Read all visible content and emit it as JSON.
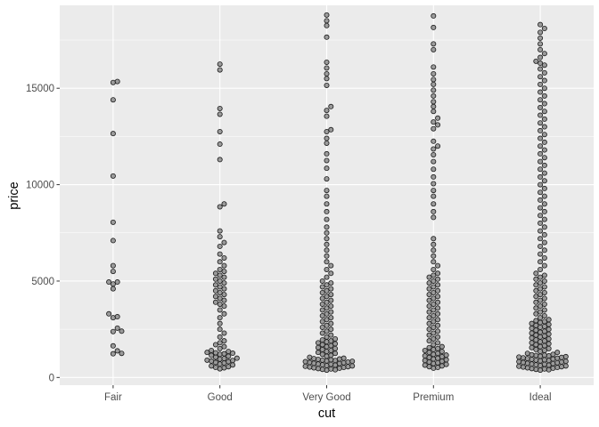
{
  "chart_data": {
    "type": "scatter",
    "subtype": "beeswarm",
    "title": "",
    "xlabel": "cut",
    "ylabel": "price",
    "categories": [
      "Fair",
      "Good",
      "Very Good",
      "Premium",
      "Ideal"
    ],
    "ylim": [
      -400,
      19300
    ],
    "yticks": [
      0,
      5000,
      10000,
      15000
    ],
    "ytick_labels": [
      "0",
      "5000",
      "10000",
      "15000"
    ],
    "grid": true,
    "legend": "none",
    "colors": {
      "panel": "#ebebeb",
      "grid_major": "#ffffff",
      "point_fill": "#7f7f7f",
      "point_stroke": "#1a1a1a",
      "tick_text": "#4d4d4d",
      "axis_title": "#000000"
    },
    "series": [
      {
        "category": "Fair",
        "values": [
          1230,
          1250,
          1380,
          1640,
          2380,
          2400,
          2560,
          3100,
          3150,
          3300,
          4600,
          4850,
          4950,
          4950,
          5500,
          5800,
          7100,
          8050,
          10450,
          12650,
          14400,
          15300,
          15350
        ]
      },
      {
        "category": "Good",
        "values": [
          450,
          500,
          520,
          560,
          600,
          650,
          700,
          750,
          780,
          820,
          850,
          880,
          900,
          950,
          980,
          1000,
          1050,
          1100,
          1150,
          1200,
          1230,
          1260,
          1280,
          1300,
          1350,
          1400,
          1500,
          1600,
          1700,
          1800,
          1900,
          2100,
          2300,
          2500,
          2800,
          3100,
          3300,
          3500,
          3700,
          3800,
          3900,
          4000,
          4100,
          4200,
          4300,
          4400,
          4500,
          4600,
          4700,
          4800,
          4900,
          5000,
          5100,
          5200,
          5300,
          5400,
          5500,
          5600,
          5800,
          6000,
          6200,
          6400,
          6800,
          7000,
          7300,
          7600,
          8850,
          9000,
          11300,
          12100,
          12750,
          13650,
          13950,
          15950,
          16250
        ]
      },
      {
        "category": "Very Good",
        "values": [
          380,
          400,
          420,
          440,
          460,
          480,
          500,
          520,
          540,
          560,
          580,
          600,
          620,
          640,
          660,
          680,
          700,
          720,
          740,
          760,
          780,
          800,
          820,
          840,
          860,
          880,
          900,
          920,
          940,
          960,
          980,
          1000,
          1050,
          1100,
          1150,
          1200,
          1250,
          1300,
          1350,
          1400,
          1450,
          1500,
          1550,
          1600,
          1650,
          1700,
          1750,
          1800,
          1850,
          1900,
          1950,
          2000,
          2100,
          2200,
          2300,
          2400,
          2500,
          2600,
          2700,
          2800,
          2900,
          3000,
          3100,
          3200,
          3300,
          3400,
          3500,
          3600,
          3700,
          3800,
          3900,
          4000,
          4100,
          4200,
          4300,
          4400,
          4500,
          4600,
          4700,
          4800,
          4900,
          5000,
          5200,
          5400,
          5600,
          5800,
          6000,
          6300,
          6600,
          6900,
          7200,
          7500,
          7800,
          8200,
          8600,
          9000,
          9400,
          9700,
          10300,
          10850,
          11250,
          11600,
          12150,
          12400,
          12750,
          12850,
          13550,
          13850,
          14050,
          15150,
          15500,
          15750,
          16050,
          16350,
          17650,
          18250,
          18500,
          18800
        ]
      },
      {
        "category": "Premium",
        "values": [
          480,
          520,
          560,
          600,
          640,
          680,
          720,
          760,
          800,
          840,
          880,
          920,
          960,
          1000,
          1040,
          1080,
          1120,
          1160,
          1200,
          1250,
          1300,
          1350,
          1400,
          1450,
          1500,
          1550,
          1600,
          1700,
          1800,
          1900,
          2000,
          2100,
          2200,
          2300,
          2400,
          2500,
          2600,
          2700,
          2800,
          2900,
          3000,
          3100,
          3200,
          3300,
          3400,
          3500,
          3600,
          3700,
          3800,
          3900,
          4000,
          4100,
          4200,
          4300,
          4400,
          4500,
          4600,
          4700,
          4800,
          4900,
          5000,
          5100,
          5200,
          5300,
          5400,
          5600,
          5800,
          6000,
          6300,
          6600,
          6900,
          7200,
          8300,
          8600,
          9000,
          9400,
          9700,
          10050,
          10400,
          10800,
          11200,
          11550,
          11850,
          12000,
          12250,
          12900,
          13100,
          13250,
          13450,
          13800,
          14050,
          14300,
          14600,
          14900,
          15200,
          15450,
          15750,
          16100,
          17000,
          17300,
          18150,
          18750
        ]
      },
      {
        "category": "Ideal",
        "values": [
          380,
          400,
          420,
          440,
          460,
          480,
          500,
          520,
          540,
          560,
          580,
          600,
          620,
          640,
          660,
          680,
          700,
          720,
          740,
          760,
          780,
          800,
          820,
          840,
          860,
          880,
          900,
          920,
          940,
          960,
          980,
          1000,
          1020,
          1040,
          1060,
          1080,
          1100,
          1120,
          1140,
          1160,
          1180,
          1200,
          1250,
          1300,
          1350,
          1400,
          1450,
          1500,
          1550,
          1600,
          1650,
          1700,
          1750,
          1800,
          1850,
          1900,
          1950,
          2000,
          2050,
          2100,
          2150,
          2200,
          2250,
          2300,
          2350,
          2400,
          2450,
          2500,
          2550,
          2600,
          2650,
          2700,
          2750,
          2800,
          2850,
          2900,
          2950,
          3000,
          3100,
          3200,
          3300,
          3400,
          3500,
          3600,
          3700,
          3800,
          3900,
          4000,
          4100,
          4200,
          4300,
          4400,
          4500,
          4600,
          4700,
          4800,
          4900,
          5000,
          5100,
          5200,
          5300,
          5400,
          5600,
          5800,
          6000,
          6200,
          6400,
          6600,
          6800,
          7000,
          7200,
          7400,
          7600,
          7800,
          8000,
          8200,
          8400,
          8600,
          8800,
          9000,
          9200,
          9400,
          9600,
          9800,
          10000,
          10200,
          10400,
          10600,
          10800,
          11000,
          11200,
          11400,
          11600,
          11800,
          12000,
          12200,
          12400,
          12600,
          12800,
          13000,
          13200,
          13400,
          13600,
          13800,
          14000,
          14200,
          14400,
          14600,
          14800,
          15000,
          15200,
          15400,
          15600,
          15800,
          16000,
          16200,
          16300,
          16400,
          16600,
          16800,
          17000,
          17300,
          17600,
          17900,
          18100,
          18300
        ]
      }
    ]
  }
}
